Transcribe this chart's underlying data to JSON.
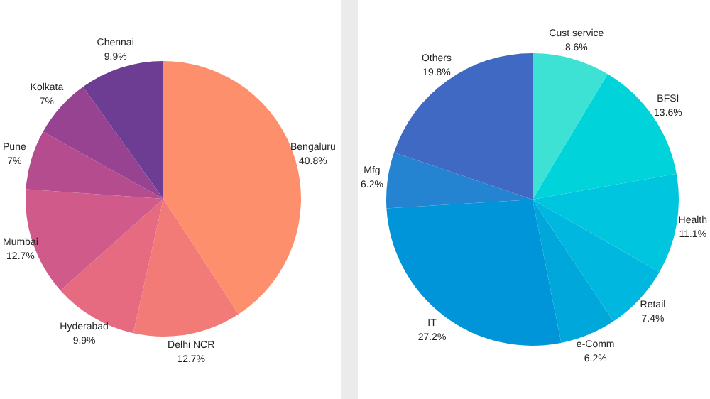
{
  "chart_data": [
    {
      "type": "pie",
      "categories": [
        "Bengaluru",
        "Delhi NCR",
        "Hyderabad",
        "Mumbai",
        "Pune",
        "Kolkata",
        "Chennai"
      ],
      "values": [
        40.8,
        12.7,
        9.9,
        12.7,
        7,
        7,
        9.9
      ],
      "value_labels": [
        "40.8%",
        "12.7%",
        "9.9%",
        "12.7%",
        "7%",
        "7%",
        "9.9%"
      ],
      "colors": [
        "#fd8f6c",
        "#f27b78",
        "#e66a80",
        "#d05a8a",
        "#b44c8e",
        "#974392",
        "#6d3d93"
      ],
      "legend": false
    },
    {
      "type": "pie",
      "categories": [
        "Cust service",
        "BFSI",
        "Health",
        "Retail",
        "e-Comm",
        "IT",
        "Mfg",
        "Others"
      ],
      "values": [
        8.6,
        13.6,
        11.1,
        7.4,
        6.2,
        27.2,
        6.2,
        19.8
      ],
      "value_labels": [
        "8.6%",
        "13.6%",
        "11.1%",
        "7.4%",
        "6.2%",
        "27.2%",
        "6.2%",
        "19.8%"
      ],
      "colors": [
        "#3de2d4",
        "#00d3da",
        "#00c5df",
        "#00b7df",
        "#00a7da",
        "#0094d8",
        "#2484d2",
        "#4069c4"
      ],
      "legend": false
    }
  ]
}
